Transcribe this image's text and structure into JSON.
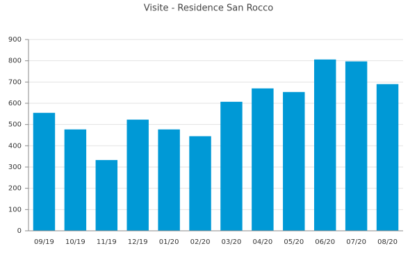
{
  "chart_data": {
    "type": "bar",
    "title": "Visite - Residence San Rocco",
    "categories": [
      "09/19",
      "10/19",
      "11/19",
      "12/19",
      "01/20",
      "02/20",
      "03/20",
      "04/20",
      "05/20",
      "06/20",
      "07/20",
      "08/20"
    ],
    "values": [
      555,
      477,
      333,
      523,
      477,
      445,
      607,
      670,
      653,
      806,
      797,
      690
    ],
    "color": "#0099d6",
    "ylim": [
      0,
      900
    ],
    "yticks": [
      0,
      100,
      200,
      300,
      400,
      500,
      600,
      700,
      800,
      900
    ],
    "grid": true
  }
}
